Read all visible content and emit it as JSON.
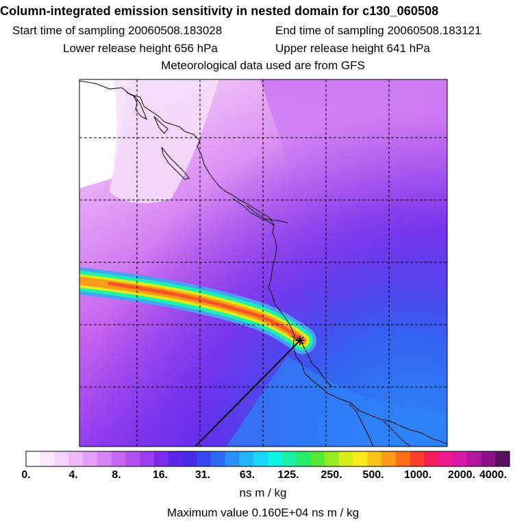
{
  "header": {
    "title": "Column-integrated emission sensitivity in nested domain for c130_060508",
    "start_time": "Start time of sampling 20060508.183028",
    "end_time": "End time of sampling 20060508.183121",
    "lower_height": "Lower release height  656 hPa",
    "upper_height": "Upper release height  641 hPa",
    "met_data": "Meteorological data used are from GFS"
  },
  "colorbar": {
    "colors": [
      "#ffffff",
      "#fbe8ff",
      "#f4d2fc",
      "#eeb8fa",
      "#e59ef7",
      "#d783f5",
      "#c768f2",
      "#b251ef",
      "#9b3bee",
      "#7d2aec",
      "#5f24ea",
      "#4a29e8",
      "#3848f0",
      "#2e6bf5",
      "#2b8ff8",
      "#25b4fb",
      "#18d8fd",
      "#10f2e6",
      "#1cf0a8",
      "#28ec6a",
      "#55e835",
      "#96ea22",
      "#d4ed1a",
      "#fbe919",
      "#fdc21a",
      "#fd9a17",
      "#fc6f18",
      "#f83e2a",
      "#f41c58",
      "#ec1a8c",
      "#d718a8",
      "#b515a0",
      "#8c1286",
      "#5a0f5c"
    ],
    "tick_labels": [
      "0.",
      "4.",
      "8.",
      "16.",
      "31.",
      "63.",
      "125.",
      "250.",
      "500.",
      "1000.",
      "2000.",
      "4000."
    ],
    "units": "ns m / kg"
  },
  "footer": {
    "max_value": "Maximum value  0.160E+04 ns m / kg"
  },
  "receptor": {
    "marker": "star-marker"
  }
}
